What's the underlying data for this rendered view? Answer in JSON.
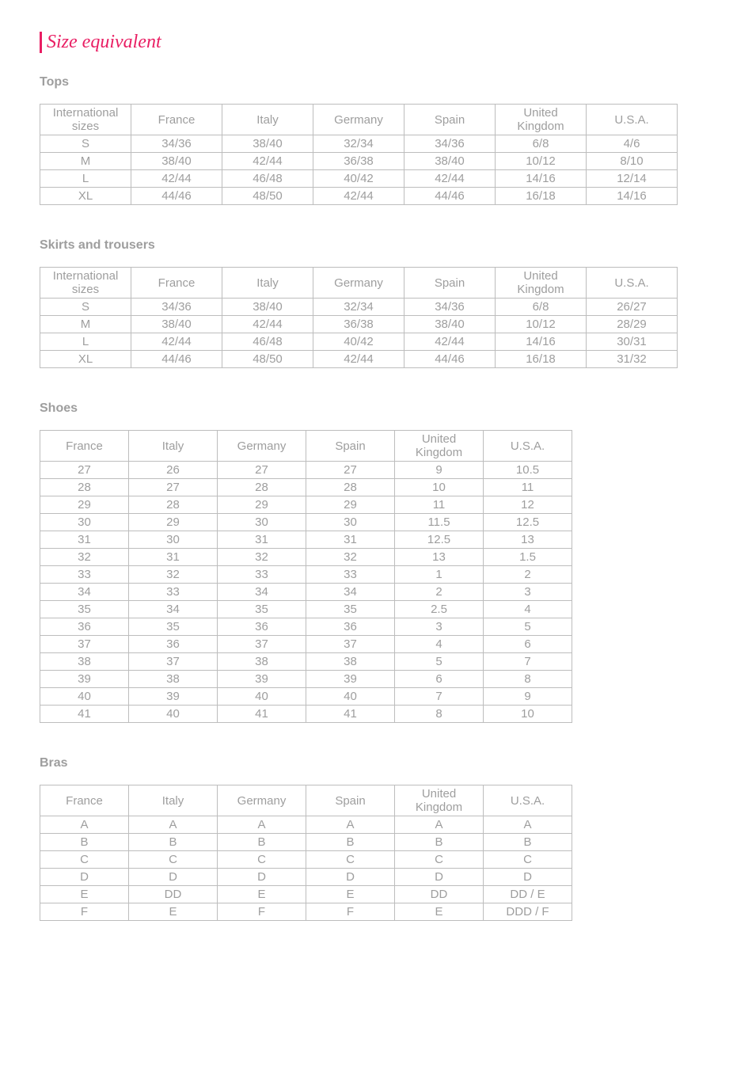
{
  "page_title": "Size equivalent",
  "colors": {
    "accent": "#e91e63",
    "text_muted": "#9e9e9e",
    "border": "#bdbdbd",
    "background": "#ffffff"
  },
  "sections": {
    "tops": {
      "heading": "Tops",
      "columns": [
        "International sizes",
        "France",
        "Italy",
        "Germany",
        "Spain",
        "United Kingdom",
        "U.S.A."
      ],
      "rows": [
        [
          "S",
          "34/36",
          "38/40",
          "32/34",
          "34/36",
          "6/8",
          "4/6"
        ],
        [
          "M",
          "38/40",
          "42/44",
          "36/38",
          "38/40",
          "10/12",
          "8/10"
        ],
        [
          "L",
          "42/44",
          "46/48",
          "40/42",
          "42/44",
          "14/16",
          "12/14"
        ],
        [
          "XL",
          "44/46",
          "48/50",
          "42/44",
          "44/46",
          "16/18",
          "14/16"
        ]
      ]
    },
    "skirts": {
      "heading": "Skirts and trousers",
      "columns": [
        "International sizes",
        "France",
        "Italy",
        "Germany",
        "Spain",
        "United Kingdom",
        "U.S.A."
      ],
      "rows": [
        [
          "S",
          "34/36",
          "38/40",
          "32/34",
          "34/36",
          "6/8",
          "26/27"
        ],
        [
          "M",
          "38/40",
          "42/44",
          "36/38",
          "38/40",
          "10/12",
          "28/29"
        ],
        [
          "L",
          "42/44",
          "46/48",
          "40/42",
          "42/44",
          "14/16",
          "30/31"
        ],
        [
          "XL",
          "44/46",
          "48/50",
          "42/44",
          "44/46",
          "16/18",
          "31/32"
        ]
      ]
    },
    "shoes": {
      "heading": "Shoes",
      "columns": [
        "France",
        "Italy",
        "Germany",
        "Spain",
        "United Kingdom",
        "U.S.A."
      ],
      "rows": [
        [
          "27",
          "26",
          "27",
          "27",
          "9",
          "10.5"
        ],
        [
          "28",
          "27",
          "28",
          "28",
          "10",
          "11"
        ],
        [
          "29",
          "28",
          "29",
          "29",
          "11",
          "12"
        ],
        [
          "30",
          "29",
          "30",
          "30",
          "11.5",
          "12.5"
        ],
        [
          "31",
          "30",
          "31",
          "31",
          "12.5",
          "13"
        ],
        [
          "32",
          "31",
          "32",
          "32",
          "13",
          "1.5"
        ],
        [
          "33",
          "32",
          "33",
          "33",
          "1",
          "2"
        ],
        [
          "34",
          "33",
          "34",
          "34",
          "2",
          "3"
        ],
        [
          "35",
          "34",
          "35",
          "35",
          "2.5",
          "4"
        ],
        [
          "36",
          "35",
          "36",
          "36",
          "3",
          "5"
        ],
        [
          "37",
          "36",
          "37",
          "37",
          "4",
          "6"
        ],
        [
          "38",
          "37",
          "38",
          "38",
          "5",
          "7"
        ],
        [
          "39",
          "38",
          "39",
          "39",
          "6",
          "8"
        ],
        [
          "40",
          "39",
          "40",
          "40",
          "7",
          "9"
        ],
        [
          "41",
          "40",
          "41",
          "41",
          "8",
          "10"
        ]
      ]
    },
    "bras": {
      "heading": "Bras",
      "columns": [
        "France",
        "Italy",
        "Germany",
        "Spain",
        "United Kingdom",
        "U.S.A."
      ],
      "rows": [
        [
          "A",
          "A",
          "A",
          "A",
          "A",
          "A"
        ],
        [
          "B",
          "B",
          "B",
          "B",
          "B",
          "B"
        ],
        [
          "C",
          "C",
          "C",
          "C",
          "C",
          "C"
        ],
        [
          "D",
          "D",
          "D",
          "D",
          "D",
          "D"
        ],
        [
          "E",
          "DD",
          "E",
          "E",
          "DD",
          "DD / E"
        ],
        [
          "F",
          "E",
          "F",
          "F",
          "E",
          "DDD / F"
        ]
      ]
    }
  }
}
